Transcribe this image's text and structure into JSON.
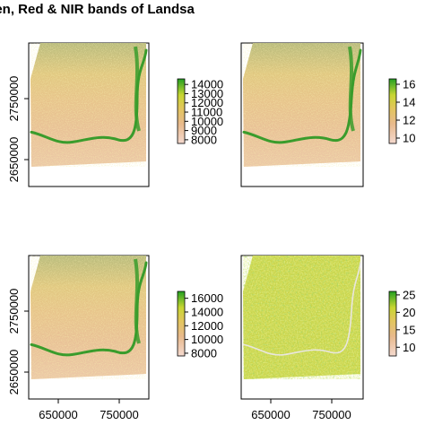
{
  "title": "een, Red & NIR bands of Landsa",
  "colors": {
    "ramp_low": "#f4d9cf",
    "ramp_mid1": "#e8ba8d",
    "ramp_mid2": "#e2c65c",
    "ramp_mid3": "#c7d632",
    "ramp_high": "#23a122",
    "river": "#3a9c2c",
    "frame": "#000000"
  },
  "chart_data": [
    {
      "type": "heatmap",
      "panel": "top-left",
      "x_ticks": [],
      "y_ticks": [
        "2650000",
        "2750000"
      ],
      "legend": {
        "ticks": [
          8000,
          9000,
          10000,
          11000,
          12000,
          13000,
          14000
        ],
        "range": [
          7600,
          14600
        ]
      }
    },
    {
      "type": "heatmap",
      "panel": "top-right",
      "x_ticks": [],
      "y_ticks": [],
      "legend": {
        "ticks": [
          10000,
          12000,
          14000,
          16000
        ],
        "tick_labels_visible": [
          "10",
          "12",
          "14",
          "16"
        ],
        "range": [
          9400,
          16600
        ]
      }
    },
    {
      "type": "heatmap",
      "panel": "bottom-left",
      "x_ticks": [
        "650000",
        "750000"
      ],
      "y_ticks": [
        "2650000",
        "2750000"
      ],
      "legend": {
        "ticks": [
          8000,
          10000,
          12000,
          14000,
          16000
        ],
        "range": [
          7600,
          17000
        ]
      }
    },
    {
      "type": "heatmap",
      "panel": "bottom-right",
      "x_ticks": [
        "650000",
        "750000"
      ],
      "y_ticks": [],
      "legend": {
        "ticks": [
          10000,
          15000,
          20000,
          25000
        ],
        "tick_labels_visible": [
          "10",
          "15",
          "20",
          "25"
        ],
        "range": [
          7500,
          26000
        ]
      }
    }
  ]
}
